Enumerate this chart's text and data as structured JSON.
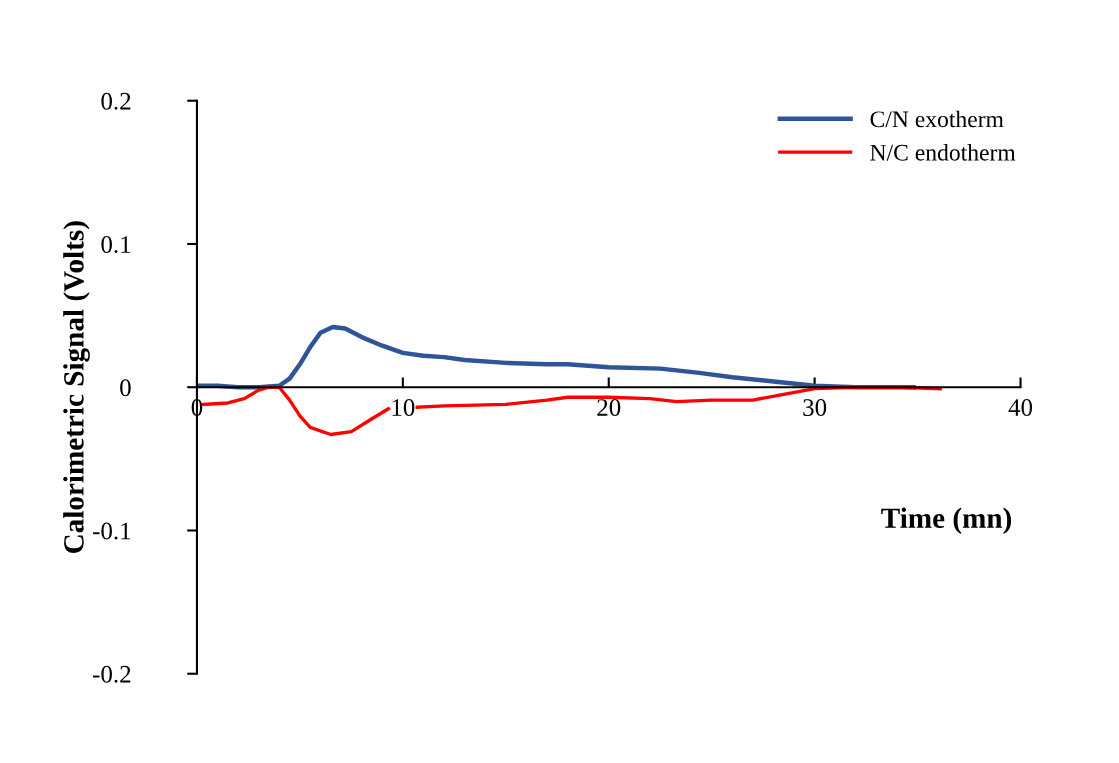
{
  "chart_data": {
    "type": "line",
    "xlabel": "Time (mn)",
    "ylabel": "Calorimetric Signal (Volts)",
    "xlim": [
      0,
      40
    ],
    "xticks": [
      0,
      10,
      20,
      30,
      40
    ],
    "ylim": [
      -0.2,
      0.2
    ],
    "yticks": [
      -0.2,
      -0.1,
      0,
      0.1,
      0.2
    ],
    "grid": false,
    "legend": "top right",
    "marker": "none",
    "line_style": "solid",
    "series": [
      {
        "name": "C/N exotherm",
        "color": "#2e5597",
        "x": [
          0,
          1,
          2,
          3,
          4,
          4.5,
          5,
          5.5,
          6,
          6.6,
          7.2,
          8,
          9,
          10,
          11,
          12,
          13,
          15,
          17,
          18,
          20,
          22.5,
          24.4,
          26,
          28,
          30,
          32,
          34.8
        ],
        "values": [
          0.001,
          0.001,
          0.0,
          0.0,
          0.001,
          0.006,
          0.016,
          0.028,
          0.038,
          0.042,
          0.041,
          0.035,
          0.029,
          0.024,
          0.022,
          0.021,
          0.019,
          0.017,
          0.016,
          0.016,
          0.014,
          0.013,
          0.01,
          0.007,
          0.004,
          0.001,
          0.0,
          0.0
        ]
      },
      {
        "name": "N/C endotherm",
        "color": "#ff0000",
        "x": [
          0.3,
          1.5,
          2.3,
          3,
          3.5,
          4,
          4.5,
          5,
          5.5,
          6.5,
          7.5,
          8.5,
          9.3,
          10,
          10.7,
          12,
          15,
          17,
          18,
          20,
          22,
          23.3,
          25,
          27,
          28.5,
          30,
          32,
          34,
          36.1
        ],
        "values": [
          -0.012,
          -0.011,
          -0.008,
          -0.002,
          0.0,
          0.0,
          -0.009,
          -0.02,
          -0.028,
          -0.033,
          -0.031,
          -0.022,
          -0.015,
          null,
          -0.014,
          -0.013,
          -0.012,
          -0.009,
          -0.007,
          -0.007,
          -0.008,
          -0.01,
          -0.009,
          -0.009,
          -0.005,
          -0.001,
          0.0,
          0.0,
          -0.001
        ]
      }
    ]
  }
}
